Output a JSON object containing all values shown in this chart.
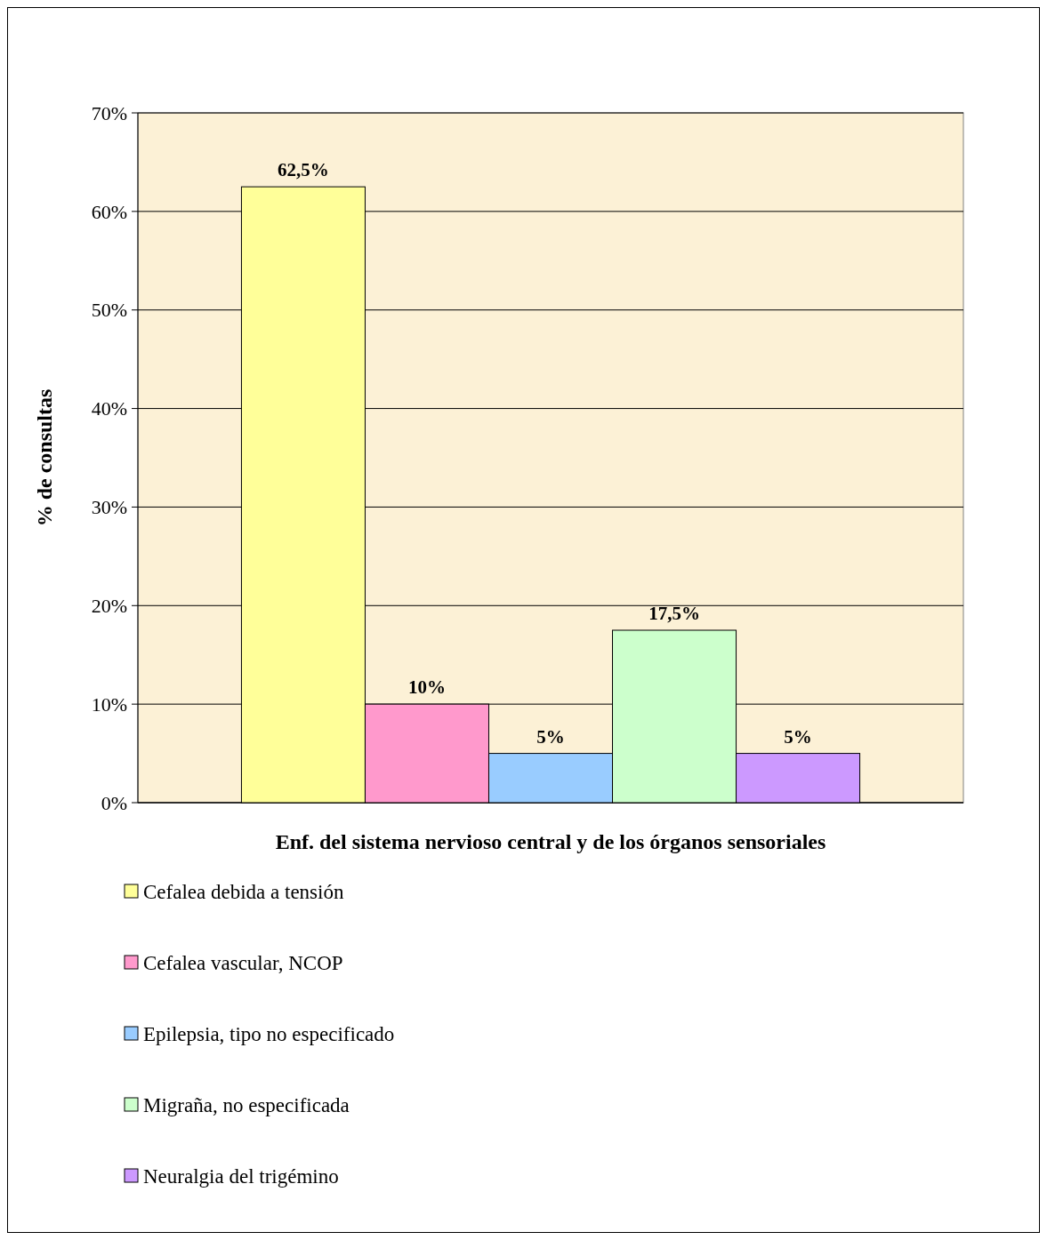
{
  "chart_data": {
    "type": "bar",
    "xlabel": "Enf. del sistema nervioso central y de los órganos sensoriales",
    "ylabel": "% de consultas",
    "categories": [
      null
    ],
    "series": [
      {
        "name": "Cefalea debida a tensión",
        "color": "#ffff99",
        "values": [
          62.5
        ],
        "value_labels": [
          "62,5%"
        ]
      },
      {
        "name": "Cefalea vascular, NCOP",
        "color": "#ff99cc",
        "values": [
          10
        ],
        "value_labels": [
          "10%"
        ]
      },
      {
        "name": "Epilepsia, tipo no especificado",
        "color": "#99ccff",
        "values": [
          5
        ],
        "value_labels": [
          "5%"
        ]
      },
      {
        "name": "Migraña, no especificada",
        "color": "#ccffcc",
        "values": [
          17.5
        ],
        "value_labels": [
          "17,5%"
        ]
      },
      {
        "name": "Neuralgia del trigémino",
        "color": "#cc99ff",
        "values": [
          5
        ],
        "value_labels": [
          "5%"
        ]
      }
    ],
    "ylim": [
      0,
      70
    ],
    "yticks": [
      {
        "value": 0,
        "label": "0%"
      },
      {
        "value": 10,
        "label": "10%"
      },
      {
        "value": 20,
        "label": "20%"
      },
      {
        "value": 30,
        "label": "30%"
      },
      {
        "value": 40,
        "label": "40%"
      },
      {
        "value": 50,
        "label": "50%"
      },
      {
        "value": 60,
        "label": "60%"
      },
      {
        "value": 70,
        "label": "70%"
      }
    ],
    "grid": "y",
    "legend": "bottom"
  }
}
